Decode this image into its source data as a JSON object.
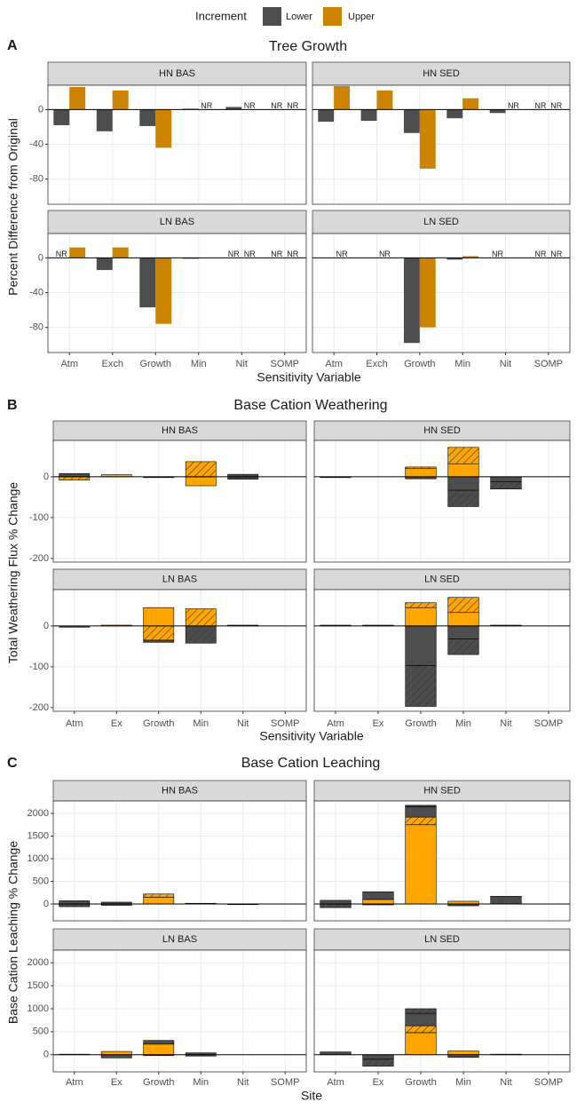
{
  "chart_data": [
    {
      "type": "bar",
      "tag": "A",
      "title": "Tree Growth",
      "legend_title": "Increment",
      "ylabel": "Percent Difference from Original",
      "xlabel": "Sensitivity Variable",
      "categories": [
        "Atm",
        "Exch",
        "Growth",
        "Min",
        "Nit",
        "SOMP"
      ],
      "ylim": [
        -109,
        28
      ],
      "yticks": [
        -80,
        -40,
        0
      ],
      "grid": true,
      "panels": [
        {
          "title": "HN BAS",
          "series": [
            {
              "name": "Lower",
              "color": "#4d4d4d",
              "values": [
                -18,
                -25,
                -19,
                1,
                3,
                null
              ],
              "value_labels": [
                null,
                null,
                null,
                null,
                null,
                "NR"
              ]
            },
            {
              "name": "Upper",
              "color": "#cc8400",
              "values": [
                26,
                22,
                -44,
                null,
                null,
                null
              ],
              "value_labels": [
                null,
                null,
                null,
                "NR",
                "NR",
                "NR"
              ]
            }
          ]
        },
        {
          "title": "HN SED",
          "series": [
            {
              "color": "#4d4d4d",
              "values": [
                -14,
                -13,
                -27,
                -10,
                -4,
                null
              ],
              "value_labels": [
                null,
                null,
                null,
                null,
                null,
                "NR"
              ]
            },
            {
              "color": "#cc8400",
              "values": [
                27,
                22,
                -68,
                13,
                null,
                null
              ],
              "value_labels": [
                null,
                null,
                null,
                null,
                "NR",
                "NR"
              ]
            }
          ]
        },
        {
          "title": "LN BAS",
          "series": [
            {
              "color": "#4d4d4d",
              "values": [
                null,
                -14,
                -57,
                -1,
                null,
                null
              ],
              "value_labels": [
                "NR",
                null,
                null,
                null,
                "NR",
                "NR"
              ]
            },
            {
              "color": "#cc8400",
              "values": [
                12,
                12,
                -76,
                null,
                null,
                null
              ],
              "value_labels": [
                null,
                null,
                null,
                null,
                "NR",
                "NR"
              ]
            }
          ]
        },
        {
          "title": "LN SED",
          "series": [
            {
              "color": "#4d4d4d",
              "values": [
                null,
                null,
                -98,
                -2,
                null,
                null
              ],
              "value_labels": [
                null,
                null,
                null,
                null,
                "NR",
                "NR"
              ]
            },
            {
              "color": "#cc8400",
              "values": [
                null,
                null,
                -80,
                2,
                null,
                null
              ],
              "value_labels": [
                "NR",
                "NR",
                null,
                null,
                null,
                "NR"
              ]
            }
          ]
        }
      ]
    },
    {
      "type": "stacked_bar",
      "tag": "B",
      "title": "Base Cation Weathering",
      "ylabel": "Total Weathering Flux % Change",
      "xlabel": "Sensitivity Variable",
      "categories": [
        "Atm",
        "Ex",
        "Growth",
        "Min",
        "Nit",
        "SOMP"
      ],
      "ylim": [
        -209,
        89
      ],
      "yticks": [
        -200,
        -100,
        0
      ],
      "grid": true,
      "panels": [
        {
          "title": "HN BAS",
          "series": [
            {
              "color": "#ffa500",
              "hatch": false,
              "values": [
                null,
                5,
                null,
                -22,
                null,
                null
              ]
            },
            {
              "color": "#ffa500",
              "hatch": true,
              "values": [
                -8,
                null,
                null,
                37,
                null,
                null
              ]
            },
            {
              "color": "#4d4d4d",
              "hatch": false,
              "values": [
                8,
                null,
                -2,
                null,
                6,
                null
              ]
            },
            {
              "color": "#4d4d4d",
              "hatch": true,
              "values": [
                null,
                null,
                null,
                null,
                -6,
                null
              ]
            }
          ]
        },
        {
          "title": "HN SED",
          "series": [
            {
              "color": "#ffa500",
              "hatch": false,
              "values": [
                null,
                null,
                20,
                32,
                null,
                null
              ]
            },
            {
              "color": "#ffa500",
              "hatch": true,
              "values": [
                null,
                null,
                4,
                40,
                null,
                null
              ]
            },
            {
              "color": "#4d4d4d",
              "hatch": false,
              "values": [
                -2,
                null,
                -5,
                -33,
                -12,
                null
              ]
            },
            {
              "color": "#4d4d4d",
              "hatch": true,
              "values": [
                null,
                null,
                null,
                -40,
                -18,
                null
              ]
            }
          ]
        },
        {
          "title": "LN BAS",
          "series": [
            {
              "color": "#ffa500",
              "hatch": false,
              "values": [
                null,
                2,
                45,
                null,
                null,
                null
              ]
            },
            {
              "color": "#ffa500",
              "hatch": true,
              "values": [
                null,
                null,
                -35,
                42,
                null,
                null
              ]
            },
            {
              "color": "#4d4d4d",
              "hatch": false,
              "values": [
                -3,
                null,
                -5,
                null,
                2,
                null
              ]
            },
            {
              "color": "#4d4d4d",
              "hatch": true,
              "values": [
                null,
                null,
                null,
                -42,
                null,
                null
              ]
            }
          ]
        },
        {
          "title": "LN SED",
          "series": [
            {
              "color": "#ffa500",
              "hatch": false,
              "values": [
                null,
                null,
                45,
                33,
                null,
                null
              ]
            },
            {
              "color": "#ffa500",
              "hatch": true,
              "values": [
                null,
                null,
                12,
                37,
                null,
                null
              ]
            },
            {
              "color": "#4d4d4d",
              "hatch": false,
              "values": [
                2,
                2,
                -97,
                -32,
                2,
                null
              ]
            },
            {
              "color": "#4d4d4d",
              "hatch": true,
              "values": [
                null,
                null,
                -100,
                -38,
                null,
                null
              ]
            }
          ]
        }
      ]
    },
    {
      "type": "stacked_bar",
      "tag": "C",
      "title": "Base Cation Leaching",
      "ylabel": "Base Cation Leaching % Change",
      "xlabel": "Site",
      "categories": [
        "Atm",
        "Ex",
        "Growth",
        "Min",
        "Nit",
        "SOMP"
      ],
      "ylim": [
        -373,
        2275
      ],
      "yticks": [
        0,
        500,
        1000,
        1500,
        2000
      ],
      "grid": true,
      "panels": [
        {
          "title": "HN BAS",
          "series": [
            {
              "color": "#ffa500",
              "hatch": false,
              "values": [
                null,
                null,
                150,
                null,
                null,
                null
              ]
            },
            {
              "color": "#ffa500",
              "hatch": true,
              "values": [
                null,
                null,
                70,
                null,
                null,
                null
              ]
            },
            {
              "color": "#4d4d4d",
              "hatch": false,
              "values": [
                70,
                40,
                null,
                15,
                -15,
                null
              ]
            },
            {
              "color": "#4d4d4d",
              "hatch": true,
              "values": [
                -60,
                -30,
                null,
                null,
                null,
                null
              ]
            }
          ]
        },
        {
          "title": "HN SED",
          "series": [
            {
              "color": "#ffa500",
              "hatch": false,
              "values": [
                null,
                100,
                1750,
                60,
                null,
                null
              ]
            },
            {
              "color": "#ffa500",
              "hatch": true,
              "values": [
                null,
                null,
                170,
                null,
                null,
                null
              ]
            },
            {
              "color": "#4d4d4d",
              "hatch": false,
              "values": [
                80,
                170,
                230,
                -40,
                170,
                null
              ]
            },
            {
              "color": "#4d4d4d",
              "hatch": true,
              "values": [
                -80,
                -20,
                30,
                null,
                null,
                null
              ]
            }
          ]
        },
        {
          "title": "LN BAS",
          "series": [
            {
              "color": "#ffa500",
              "hatch": false,
              "values": [
                null,
                70,
                230,
                null,
                null,
                null
              ]
            },
            {
              "color": "#ffa500",
              "hatch": true,
              "values": [
                null,
                null,
                null,
                null,
                null,
                null
              ]
            },
            {
              "color": "#4d4d4d",
              "hatch": false,
              "values": [
                10,
                -70,
                80,
                40,
                null,
                null
              ]
            },
            {
              "color": "#4d4d4d",
              "hatch": true,
              "values": [
                null,
                null,
                -20,
                -30,
                null,
                null
              ]
            }
          ]
        },
        {
          "title": "LN SED",
          "series": [
            {
              "color": "#ffa500",
              "hatch": false,
              "values": [
                null,
                null,
                480,
                80,
                null,
                null
              ]
            },
            {
              "color": "#ffa500",
              "hatch": true,
              "values": [
                null,
                null,
                150,
                null,
                null,
                null
              ]
            },
            {
              "color": "#4d4d4d",
              "hatch": false,
              "values": [
                60,
                -100,
                270,
                -60,
                10,
                null
              ]
            },
            {
              "color": "#4d4d4d",
              "hatch": true,
              "values": [
                null,
                -150,
                100,
                null,
                null,
                null
              ]
            }
          ]
        }
      ]
    }
  ]
}
